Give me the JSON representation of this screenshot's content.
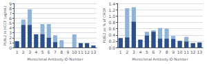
{
  "chart_data": [
    {
      "type": "bar",
      "xlabel": "Monoclonal Antibody ID Number",
      "ylabel": "PLBL2 in HCCF (μg/mL)",
      "categories": [
        "1",
        "2",
        "3",
        "4",
        "5",
        "6",
        "7",
        "8",
        "9",
        "10",
        "11",
        "12",
        "13"
      ],
      "series": [
        {
          "color": "#8fb4d9",
          "values": [
            1.3,
            5.7,
            7.8,
            2.7,
            4.8,
            4.8,
            2.5,
            1.5,
            0.0,
            2.7,
            0.0,
            0.9,
            0.4
          ]
        },
        {
          "color": "#2b4e8d",
          "values": [
            1.3,
            4.6,
            4.6,
            2.7,
            2.7,
            2.0,
            1.1,
            0.0,
            0.0,
            0.0,
            0.9,
            0.9,
            0.4
          ]
        }
      ],
      "ylim": [
        0,
        9
      ],
      "yticks": [
        0,
        1,
        2,
        3,
        4,
        5,
        6,
        7,
        8,
        9
      ],
      "grid": true
    },
    {
      "type": "bar",
      "xlabel": "Monoclonal Antibody ID Number",
      "ylabel": "PLBL2 as % of CHOP",
      "categories": [
        "1",
        "2",
        "3",
        "4",
        "5",
        "6",
        "7",
        "8",
        "9",
        "10",
        "11",
        "12",
        "13"
      ],
      "series": [
        {
          "color": "#8fb4d9",
          "values": [
            0.3,
            1.25,
            1.28,
            0.25,
            0.5,
            0.55,
            0.62,
            0.6,
            0.37,
            0.21,
            0.34,
            0.14,
            0.16
          ]
        },
        {
          "color": "#2b4e8d",
          "values": [
            0.3,
            0.32,
            0.82,
            0.25,
            0.38,
            0.5,
            0.28,
            0.28,
            0.27,
            0.21,
            0.19,
            0.14,
            0.16
          ]
        }
      ],
      "ylim": [
        0,
        1.4
      ],
      "yticks": [
        {
          "value": 0.0,
          "label": "0.0"
        },
        0.2,
        0.4,
        0.6,
        0.8,
        {
          "value": 1.0,
          "label": "1.0"
        },
        1.2,
        1.4
      ],
      "grid": true
    }
  ]
}
